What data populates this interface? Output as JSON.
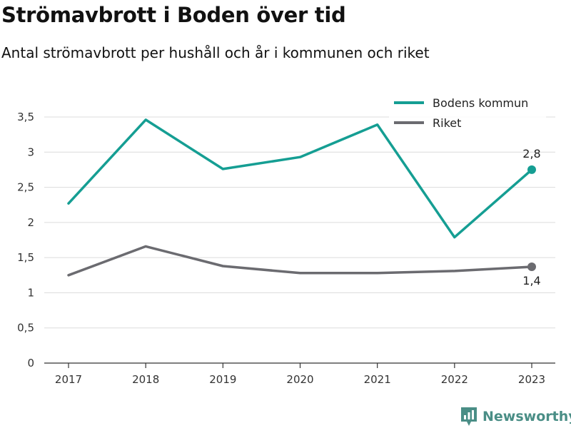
{
  "chart_data": {
    "type": "line",
    "title": "Strömavbrott i Boden över tid",
    "subtitle": "Antal strömavbrott per hushåll och år i kommunen och riket",
    "x": [
      "2017",
      "2018",
      "2019",
      "2020",
      "2021",
      "2022",
      "2023"
    ],
    "series": [
      {
        "name": "Bodens kommun",
        "color": "#159e93",
        "values": [
          2.27,
          3.46,
          2.76,
          2.93,
          3.39,
          1.79,
          2.75
        ],
        "end_label": "2,8"
      },
      {
        "name": "Riket",
        "color": "#6b6b70",
        "values": [
          1.25,
          1.66,
          1.38,
          1.28,
          1.28,
          1.31,
          1.37
        ],
        "end_label": "1,4"
      }
    ],
    "ylim": [
      0,
      3.5
    ],
    "yticks": [
      {
        "value": 0,
        "label": "0"
      },
      {
        "value": 0.5,
        "label": "0,5"
      },
      {
        "value": 1,
        "label": "1"
      },
      {
        "value": 1.5,
        "label": "1,5"
      },
      {
        "value": 2,
        "label": "2"
      },
      {
        "value": 2.5,
        "label": "2,5"
      },
      {
        "value": 3,
        "label": "3"
      },
      {
        "value": 3.5,
        "label": "3,5"
      }
    ],
    "grid": true,
    "legend": "top-right"
  },
  "brand": {
    "name": "Newsworthy",
    "icon": "newsworthy-logo-icon",
    "color": "#4a8e86"
  }
}
